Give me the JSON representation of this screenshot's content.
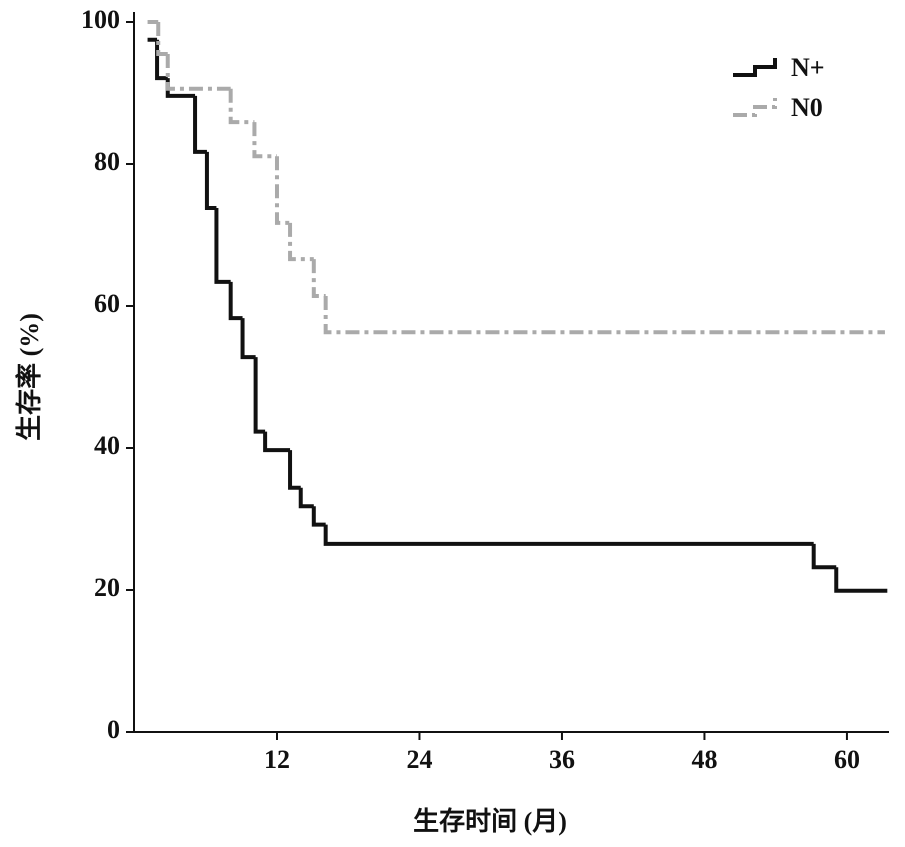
{
  "chart_data": {
    "type": "step",
    "xlabel": "生存时间 (月)",
    "ylabel": "生存率 (%)",
    "xlim": [
      0,
      63.5
    ],
    "ylim": [
      0,
      100
    ],
    "xticks": [
      12,
      24,
      36,
      48,
      60
    ],
    "yticks": [
      0,
      20,
      40,
      60,
      80,
      100
    ],
    "legend": "top-right",
    "series": [
      {
        "name": "N+",
        "color": "#111111",
        "dash": "solid",
        "x": [
          1.1,
          1.9,
          2.8,
          5.1,
          6.1,
          6.9,
          8.1,
          9.1,
          10.2,
          11.0,
          13.1,
          14.0,
          15.1,
          16.1,
          57.2,
          59.1,
          63.4
        ],
        "values": [
          97.5,
          92.1,
          89.6,
          81.7,
          73.8,
          63.4,
          58.3,
          52.8,
          42.3,
          39.7,
          34.4,
          31.8,
          29.2,
          26.5,
          23.2,
          19.9,
          19.9
        ]
      },
      {
        "name": "N0",
        "color": "#aaaaaa",
        "dash": "dashdot",
        "x": [
          1.1,
          2.0,
          2.8,
          8.1,
          10.1,
          12.0,
          13.1,
          15.1,
          16.1,
          63.2
        ],
        "values": [
          100,
          95.5,
          90.6,
          85.9,
          81.1,
          71.7,
          66.6,
          61.4,
          56.3,
          56.3
        ]
      }
    ]
  }
}
